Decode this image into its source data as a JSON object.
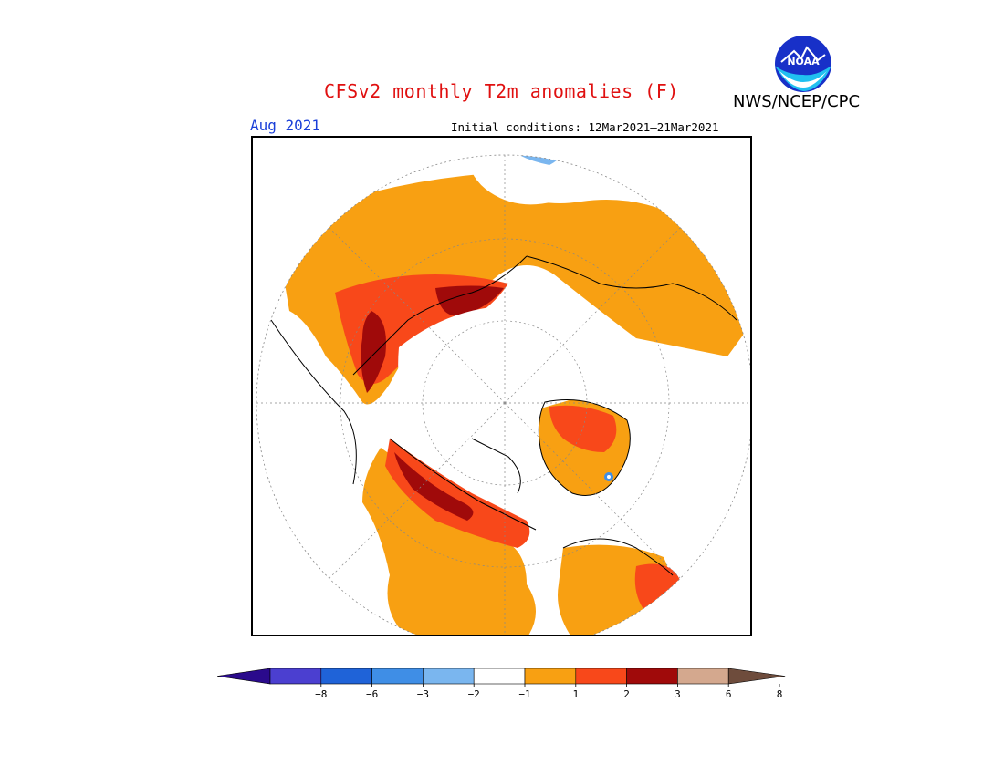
{
  "header": {
    "title": "CFSv2 monthly T2m anomalies (F)",
    "agency": "NWS/NCEP/CPC",
    "logo_text": "NOAA",
    "valid_month": "Aug 2021",
    "initial_conditions": "Initial conditions: 12Mar2021–21Mar2021"
  },
  "map": {
    "projection": "north polar stereographic"
  },
  "legend": {
    "ticks": [
      "−8",
      "−6",
      "−3",
      "−2",
      "−1",
      "1",
      "2",
      "3",
      "6",
      "8"
    ],
    "colors": [
      "#2a0a8c",
      "#4b3fd0",
      "#1f63d8",
      "#3f8ee6",
      "#7ab6ef",
      "#ffffff",
      "#f8a012",
      "#f8481a",
      "#a00a0a",
      "#d4a88e",
      "#6e4c3c"
    ]
  }
}
